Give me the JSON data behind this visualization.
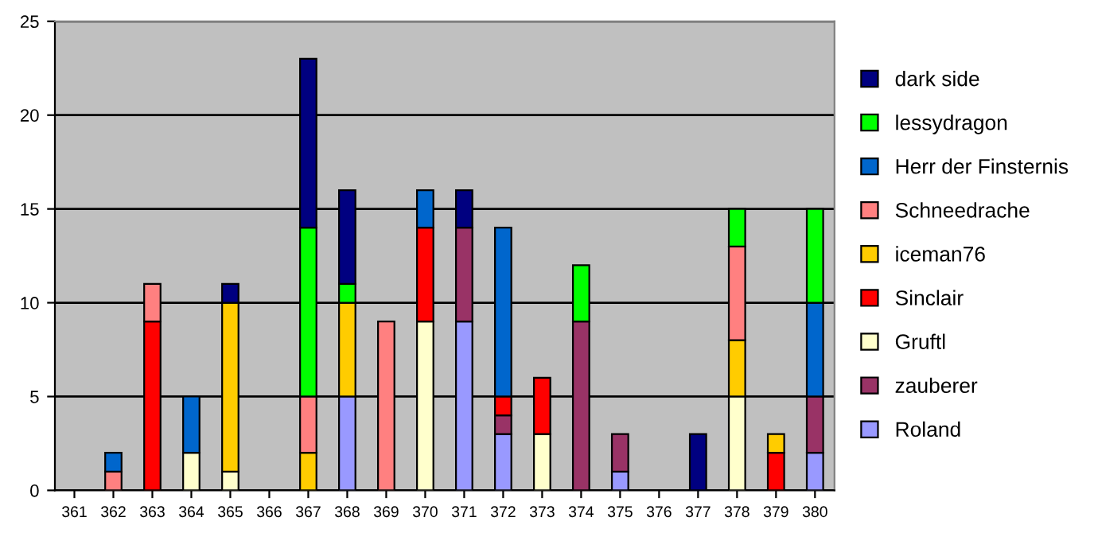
{
  "chart_data": {
    "type": "bar",
    "stacked": true,
    "categories": [
      "361",
      "362",
      "363",
      "364",
      "365",
      "366",
      "367",
      "368",
      "369",
      "370",
      "371",
      "372",
      "373",
      "374",
      "375",
      "376",
      "377",
      "378",
      "379",
      "380"
    ],
    "ylim": [
      0,
      25
    ],
    "yticks": [
      0,
      5,
      10,
      15,
      20,
      25
    ],
    "grid": "y",
    "legend": "right",
    "series": [
      {
        "name": "Roland",
        "color": "#9999ff",
        "values": [
          null,
          null,
          null,
          null,
          null,
          null,
          null,
          5,
          null,
          null,
          9,
          3,
          null,
          null,
          1,
          null,
          null,
          null,
          null,
          2
        ]
      },
      {
        "name": "zauberer",
        "color": "#993366",
        "values": [
          null,
          null,
          null,
          null,
          null,
          null,
          null,
          null,
          null,
          null,
          5,
          1,
          null,
          9,
          2,
          null,
          null,
          null,
          null,
          3
        ]
      },
      {
        "name": "Gruftl",
        "color": "#ffffcc",
        "values": [
          null,
          null,
          null,
          2,
          1,
          null,
          null,
          null,
          null,
          9,
          null,
          null,
          3,
          null,
          null,
          null,
          null,
          5,
          null,
          null
        ]
      },
      {
        "name": "Sinclair",
        "color": "#ff0000",
        "values": [
          null,
          null,
          9,
          null,
          null,
          null,
          null,
          null,
          null,
          5,
          null,
          1,
          3,
          null,
          null,
          null,
          null,
          null,
          2,
          null
        ]
      },
      {
        "name": "iceman76",
        "color": "#ffcc00",
        "values": [
          null,
          null,
          null,
          null,
          9,
          null,
          2,
          5,
          null,
          null,
          null,
          null,
          null,
          null,
          null,
          null,
          null,
          3,
          1,
          null
        ]
      },
      {
        "name": "Schneedrache",
        "color": "#ff8080",
        "values": [
          null,
          1,
          2,
          null,
          null,
          null,
          3,
          null,
          9,
          null,
          null,
          null,
          null,
          null,
          null,
          null,
          null,
          5,
          null,
          null
        ]
      },
      {
        "name": "Herr der Finsternis",
        "color": "#0066cc",
        "values": [
          null,
          1,
          null,
          3,
          null,
          null,
          null,
          null,
          null,
          2,
          null,
          9,
          null,
          null,
          null,
          null,
          null,
          null,
          null,
          5
        ]
      },
      {
        "name": "lessydragon",
        "color": "#00ff00",
        "values": [
          null,
          null,
          null,
          null,
          null,
          null,
          9,
          1,
          null,
          null,
          null,
          null,
          null,
          3,
          null,
          null,
          null,
          2,
          null,
          5
        ]
      },
      {
        "name": "dark side",
        "color": "#000080",
        "values": [
          null,
          null,
          null,
          null,
          1,
          null,
          9,
          5,
          null,
          null,
          2,
          null,
          null,
          null,
          null,
          null,
          3,
          null,
          null,
          null
        ]
      }
    ]
  }
}
